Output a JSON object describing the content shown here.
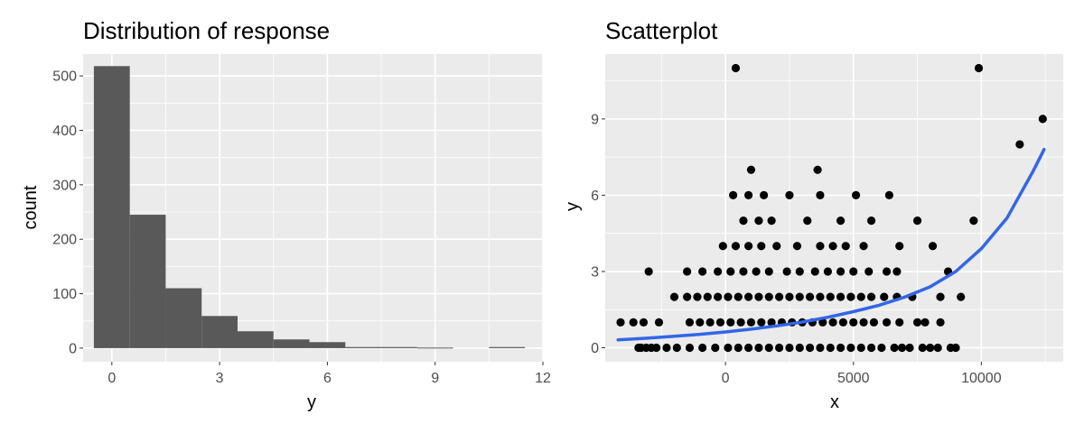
{
  "chart_data": [
    {
      "type": "bar",
      "title": "Distribution of response",
      "xlabel": "y",
      "ylabel": "count",
      "xlim": [
        -0.8,
        12
      ],
      "ylim": [
        -25,
        540
      ],
      "xticks": [
        0,
        3,
        6,
        9,
        12
      ],
      "yticks": [
        0,
        100,
        200,
        300,
        400,
        500
      ],
      "bin_width": 1,
      "categories": [
        0,
        1,
        2,
        3,
        4,
        5,
        6,
        7,
        8,
        9,
        10,
        11
      ],
      "values": [
        518,
        245,
        110,
        59,
        31,
        16,
        11,
        2,
        2,
        1,
        0,
        2
      ],
      "bar_color": "#595959",
      "panel_bg": "#ebebeb",
      "grid": true
    },
    {
      "type": "scatter",
      "title": "Scatterplot",
      "xlabel": "x",
      "ylabel": "y",
      "xlim": [
        -4700,
        13200
      ],
      "ylim": [
        -0.55,
        11.55
      ],
      "xticks": [
        0,
        5000,
        10000
      ],
      "yticks": [
        0,
        3,
        6,
        9
      ],
      "point_color": "#000000",
      "panel_bg": "#ebebeb",
      "grid": true,
      "points": [
        [
          -4100,
          1
        ],
        [
          -3600,
          1
        ],
        [
          -3200,
          1
        ],
        [
          -2600,
          1
        ],
        [
          -3000,
          3
        ],
        [
          -3300,
          0
        ],
        [
          -3100,
          0
        ],
        [
          -2900,
          0
        ],
        [
          -3400,
          0
        ],
        [
          -2700,
          0
        ],
        [
          -2300,
          0
        ],
        [
          -1900,
          0
        ],
        [
          -1400,
          0
        ],
        [
          -900,
          0
        ],
        [
          -400,
          0
        ],
        [
          100,
          0
        ],
        [
          500,
          0
        ],
        [
          900,
          0
        ],
        [
          1300,
          0
        ],
        [
          1700,
          0
        ],
        [
          2100,
          0
        ],
        [
          2500,
          0
        ],
        [
          2900,
          0
        ],
        [
          3300,
          0
        ],
        [
          3700,
          0
        ],
        [
          4100,
          0
        ],
        [
          4500,
          0
        ],
        [
          4900,
          0
        ],
        [
          5300,
          0
        ],
        [
          5700,
          0
        ],
        [
          6100,
          0
        ],
        [
          6600,
          0
        ],
        [
          6900,
          0
        ],
        [
          7200,
          0
        ],
        [
          7700,
          0
        ],
        [
          8000,
          0
        ],
        [
          8300,
          0
        ],
        [
          8800,
          0
        ],
        [
          9000,
          0
        ],
        [
          -1400,
          1
        ],
        [
          -1000,
          1
        ],
        [
          -600,
          1
        ],
        [
          -200,
          1
        ],
        [
          200,
          1
        ],
        [
          600,
          1
        ],
        [
          1000,
          1
        ],
        [
          1400,
          1
        ],
        [
          1800,
          1
        ],
        [
          2200,
          1
        ],
        [
          2600,
          1
        ],
        [
          3000,
          1
        ],
        [
          3400,
          1
        ],
        [
          3800,
          1
        ],
        [
          4200,
          1
        ],
        [
          4600,
          1
        ],
        [
          5000,
          1
        ],
        [
          5400,
          1
        ],
        [
          5800,
          1
        ],
        [
          6300,
          1
        ],
        [
          6800,
          1
        ],
        [
          7500,
          1
        ],
        [
          7800,
          1
        ],
        [
          8400,
          1
        ],
        [
          -2000,
          2
        ],
        [
          -1500,
          2
        ],
        [
          -1100,
          2
        ],
        [
          -700,
          2
        ],
        [
          -300,
          2
        ],
        [
          100,
          2
        ],
        [
          500,
          2
        ],
        [
          900,
          2
        ],
        [
          1300,
          2
        ],
        [
          1700,
          2
        ],
        [
          2100,
          2
        ],
        [
          2500,
          2
        ],
        [
          2900,
          2
        ],
        [
          3300,
          2
        ],
        [
          3700,
          2
        ],
        [
          4100,
          2
        ],
        [
          4500,
          2
        ],
        [
          4900,
          2
        ],
        [
          5300,
          2
        ],
        [
          5700,
          2
        ],
        [
          6200,
          2
        ],
        [
          6700,
          2
        ],
        [
          7300,
          2
        ],
        [
          8400,
          2
        ],
        [
          9200,
          2
        ],
        [
          -1500,
          3
        ],
        [
          -900,
          3
        ],
        [
          -300,
          3
        ],
        [
          200,
          3
        ],
        [
          700,
          3
        ],
        [
          1200,
          3
        ],
        [
          1700,
          3
        ],
        [
          2400,
          3
        ],
        [
          2900,
          3
        ],
        [
          3500,
          3
        ],
        [
          4000,
          3
        ],
        [
          4500,
          3
        ],
        [
          5000,
          3
        ],
        [
          5600,
          3
        ],
        [
          6300,
          3
        ],
        [
          6700,
          3
        ],
        [
          8700,
          3
        ],
        [
          -100,
          4
        ],
        [
          400,
          4
        ],
        [
          900,
          4
        ],
        [
          1400,
          4
        ],
        [
          2000,
          4
        ],
        [
          2800,
          4
        ],
        [
          3700,
          4
        ],
        [
          4200,
          4
        ],
        [
          4700,
          4
        ],
        [
          5400,
          4
        ],
        [
          6800,
          4
        ],
        [
          8100,
          4
        ],
        [
          700,
          5
        ],
        [
          1300,
          5
        ],
        [
          1800,
          5
        ],
        [
          3200,
          5
        ],
        [
          4500,
          5
        ],
        [
          5700,
          5
        ],
        [
          7500,
          5
        ],
        [
          9700,
          5
        ],
        [
          300,
          6
        ],
        [
          900,
          6
        ],
        [
          1500,
          6
        ],
        [
          2500,
          6
        ],
        [
          3700,
          6
        ],
        [
          5100,
          6
        ],
        [
          6400,
          6
        ],
        [
          1000,
          7
        ],
        [
          3600,
          7
        ],
        [
          11500,
          8
        ],
        [
          12400,
          9
        ],
        [
          400,
          11
        ],
        [
          9900,
          11
        ]
      ],
      "trend": {
        "x": [
          -4200,
          -3000,
          -2000,
          -1000,
          0,
          1000,
          2000,
          3000,
          4000,
          5000,
          6000,
          7000,
          8000,
          9000,
          10000,
          11000,
          12000,
          12450
        ],
        "y": [
          0.31,
          0.38,
          0.45,
          0.53,
          0.62,
          0.73,
          0.86,
          1.01,
          1.2,
          1.42,
          1.67,
          1.99,
          2.4,
          3.0,
          3.9,
          5.1,
          6.9,
          7.8
        ],
        "color": "#3366e6"
      }
    }
  ]
}
